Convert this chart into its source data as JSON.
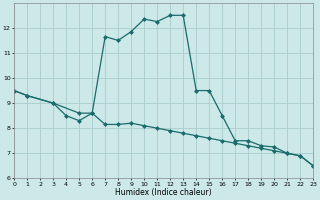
{
  "xlabel": "Humidex (Indice chaleur)",
  "bg_color": "#cce8e8",
  "grid_color": "#aacccc",
  "line_color": "#1a6b6b",
  "marker": "D",
  "markersize": 2.0,
  "linewidth": 0.9,
  "curve1_x": [
    0,
    1,
    3,
    5,
    6,
    7,
    8,
    9,
    10,
    11,
    12,
    13,
    14,
    15,
    16,
    17,
    18,
    19,
    20,
    21,
    22,
    23
  ],
  "curve1_y": [
    9.5,
    9.3,
    9.0,
    8.6,
    8.6,
    11.65,
    11.5,
    11.85,
    12.35,
    12.25,
    12.5,
    12.5,
    9.5,
    9.5,
    8.5,
    7.5,
    7.5,
    7.3,
    7.25,
    7.0,
    6.9,
    6.5
  ],
  "curve2_x": [
    0,
    1,
    3,
    4,
    5,
    6,
    7,
    8,
    9,
    10,
    11,
    12,
    13,
    14,
    15,
    16,
    17,
    18,
    19,
    20,
    21,
    22,
    23
  ],
  "curve2_y": [
    9.5,
    9.3,
    9.0,
    8.5,
    8.3,
    8.6,
    8.15,
    8.15,
    8.2,
    8.1,
    8.0,
    7.9,
    7.8,
    7.7,
    7.6,
    7.5,
    7.4,
    7.3,
    7.2,
    7.1,
    7.0,
    6.9,
    6.5
  ],
  "xlim": [
    0,
    23
  ],
  "ylim": [
    6,
    13
  ],
  "yticks": [
    6,
    7,
    8,
    9,
    10,
    11,
    12
  ],
  "xticks": [
    0,
    1,
    2,
    3,
    4,
    5,
    6,
    7,
    8,
    9,
    10,
    11,
    12,
    13,
    14,
    15,
    16,
    17,
    18,
    19,
    20,
    21,
    22,
    23
  ]
}
